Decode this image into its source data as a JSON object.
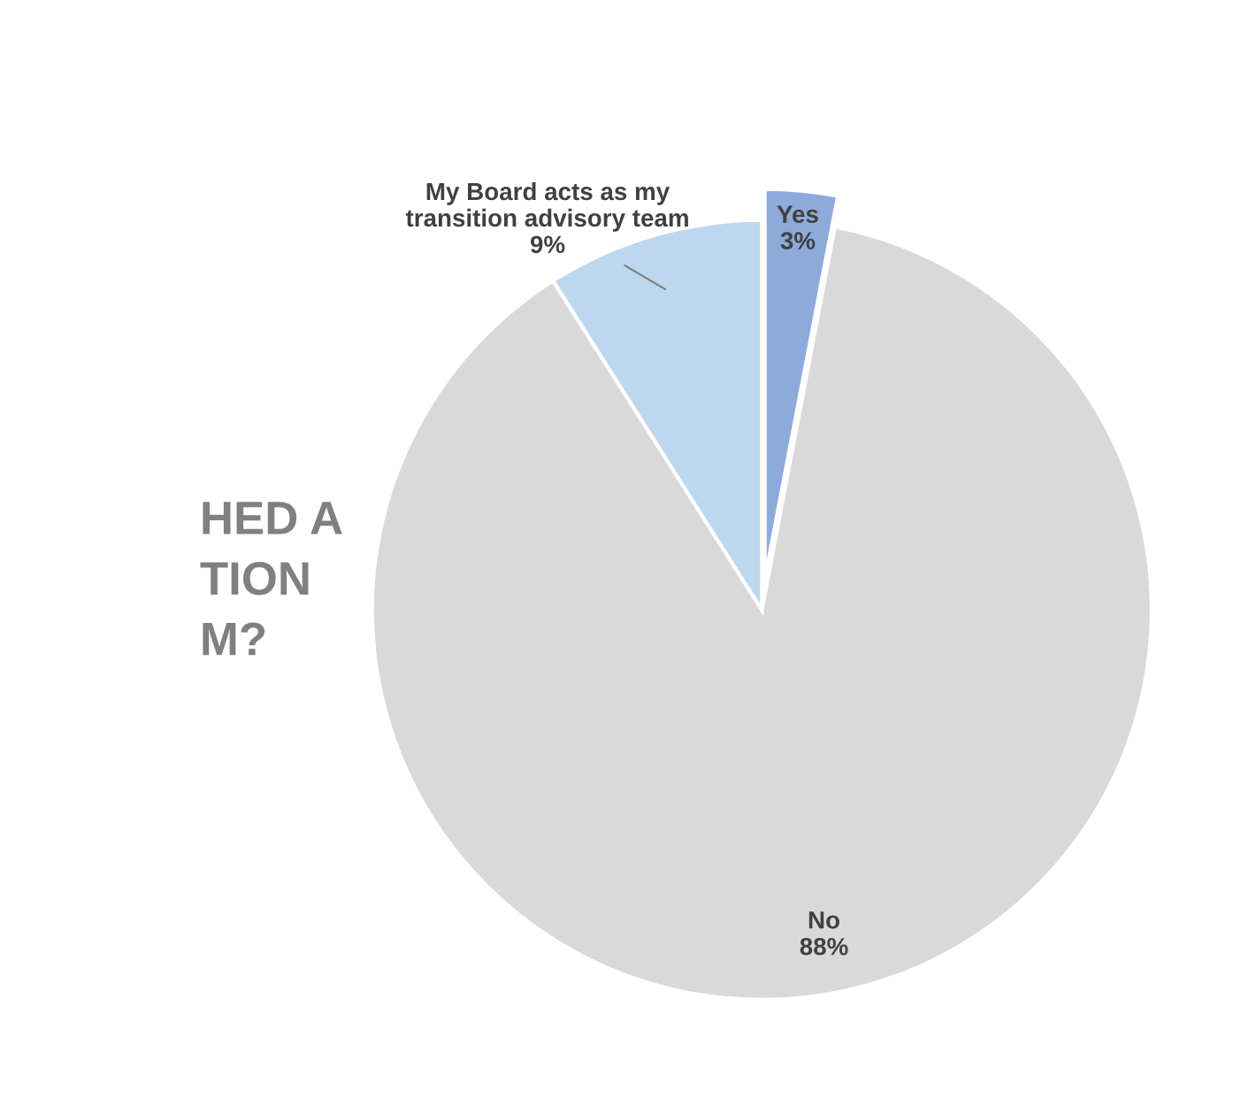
{
  "chart_data": {
    "type": "pie",
    "categories": [
      "Yes",
      "No",
      "My Board acts as my transition advisory team"
    ],
    "values": [
      3,
      88,
      9
    ],
    "colors": [
      "#8eaadb",
      "#d9d9d9",
      "#bdd7ee"
    ],
    "value_labels": [
      "3%",
      "88%",
      "9%"
    ],
    "annotations": [
      "HED A\nTION\nM?"
    ]
  }
}
